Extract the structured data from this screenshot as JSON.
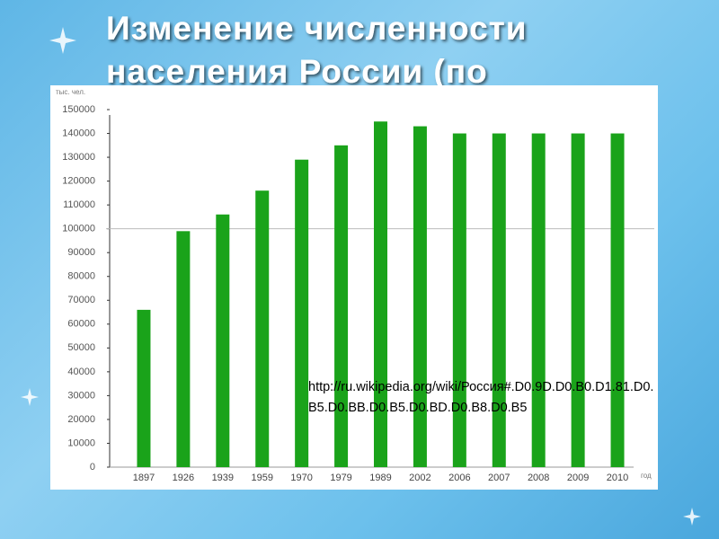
{
  "title": [
    "Изменение численности",
    "населения России (по"
  ],
  "chart_data": {
    "type": "bar",
    "y_label": "тыс. чел.",
    "x_label": "год",
    "categories": [
      "1897",
      "1926",
      "1939",
      "1959",
      "1970",
      "1979",
      "1989",
      "2002",
      "2006",
      "2007",
      "2008",
      "2009",
      "2010"
    ],
    "values": [
      66000,
      99000,
      106000,
      116000,
      129000,
      135000,
      145000,
      143000,
      140000,
      140000,
      140000,
      140000,
      140000
    ],
    "color": "#1aa31a",
    "ylim": [
      0,
      150000
    ],
    "yticks": [
      0,
      10000,
      20000,
      30000,
      40000,
      50000,
      60000,
      70000,
      80000,
      90000,
      100000,
      110000,
      120000,
      130000,
      140000,
      150000
    ],
    "hline": 100000,
    "annotation": "http://ru.wikipedia.org/wiki/Россия#.D0.9D.D0.B0.D1.81.D0.B5.D0.BB.D0.B5.D0.BD.D0.B8.D0.B5"
  }
}
